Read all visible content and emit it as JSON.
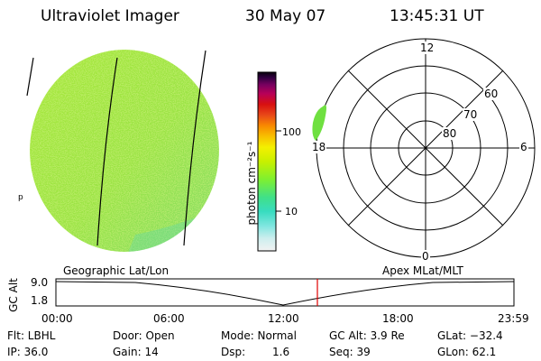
{
  "header": {
    "title": "Ultraviolet Imager",
    "date": "30 May 07",
    "time": "13:45:31 UT"
  },
  "earth_image": {
    "edge_marker": "p",
    "colors": {
      "fill": "#9ee640",
      "speckle_light": "#c8ef3c",
      "speckle_cyan": "#4fe0b8"
    }
  },
  "colorbar": {
    "label": "photon cm⁻²s⁻¹",
    "ticks": [
      "100",
      "10"
    ],
    "scale": "log",
    "stops": [
      "#e0e0e0",
      "#bfeff0",
      "#4fe0d8",
      "#40e0a0",
      "#78f030",
      "#c8f000",
      "#f0f000",
      "#f0c000",
      "#f08000",
      "#e04020",
      "#d01010",
      "#b00060",
      "#700060",
      "#300040",
      "#000010"
    ]
  },
  "polar_plot": {
    "lat_labels": [
      "60",
      "70",
      "80"
    ],
    "mlt_labels": {
      "top": "12",
      "bottom": "0",
      "left": "18",
      "right": "6"
    },
    "patch_color": "#6fe040"
  },
  "timeline": {
    "left_label": "Geographic Lat/Lon",
    "right_label": "Apex MLat/MLT",
    "axis_label": "GC Alt",
    "y_ticks": [
      "9.0",
      "1.8"
    ],
    "x_ticks": [
      "00:00",
      "06:00",
      "12:00",
      "18:00",
      "23:59"
    ],
    "current_time_color": "#e00000"
  },
  "status": {
    "flt": "Flt: LBHL",
    "door": "Door: Open",
    "mode": "Mode: Normal",
    "gc_alt": "GC Alt: 3.9 Re",
    "glat": "GLat: −32.4",
    "ip": "IP: 36.0",
    "gain": "Gain: 14",
    "dsp_label": "Dsp:",
    "dsp_value": "1.6",
    "seq": "Seq: 39",
    "glon": "GLon: 62.1"
  }
}
